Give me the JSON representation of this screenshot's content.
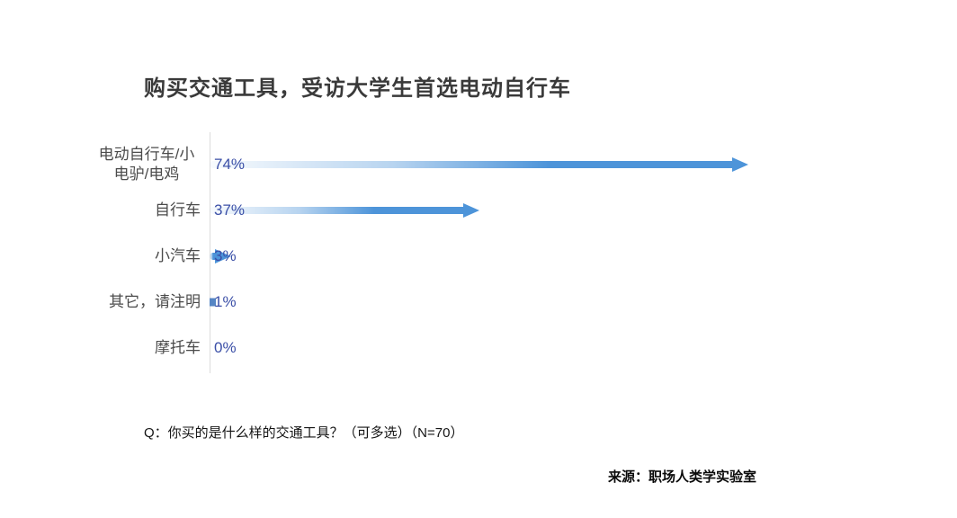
{
  "title": "购买交通工具，受访大学生首选电动自行车",
  "chart_data": {
    "type": "bar",
    "orientation": "horizontal",
    "title": "购买交通工具，受访大学生首选电动自行车",
    "categories": [
      "电动自行车/小电驴/电鸡",
      "自行车",
      "小汽车",
      "其它，请注明",
      "摩托车"
    ],
    "values": [
      74,
      37,
      3,
      1,
      0
    ],
    "value_labels": [
      "74%",
      "37%",
      "3%",
      "1%",
      "0%"
    ],
    "xlabel": "",
    "ylabel": "",
    "xlim": [
      0,
      80
    ],
    "grid": false,
    "legend": false,
    "bar_style": "gradient-arrow",
    "bar_color": "#4d94d9",
    "value_label_color": "#3b4fa7",
    "category_label_color": "#4b4b4b",
    "axis_line_color": "#dcdcdc"
  },
  "footnote": "Q：你买的是什么样的交通工具？（可多选）（N=70）",
  "source": "来源：职场人类学实验室"
}
